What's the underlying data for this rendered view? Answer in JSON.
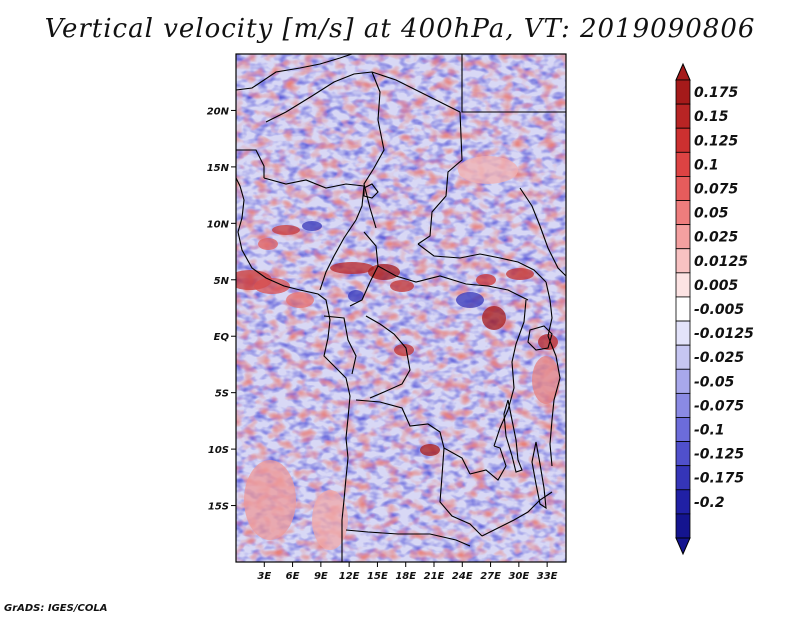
{
  "title": "Vertical velocity [m/s] at 400hPa, VT: 2019090806",
  "footer": "GrADS: IGES/COLA",
  "map": {
    "lon_range": [
      0,
      35
    ],
    "lat_range": [
      -20,
      25
    ],
    "lon_ticks": [
      "3E",
      "6E",
      "9E",
      "12E",
      "15E",
      "18E",
      "21E",
      "24E",
      "27E",
      "30E",
      "33E"
    ],
    "lat_ticks": [
      "20N",
      "15N",
      "10N",
      "5N",
      "EQ",
      "5S",
      "10S",
      "15S"
    ]
  },
  "colorbar": {
    "levels": [
      "0.175",
      "0.15",
      "0.125",
      "0.1",
      "0.075",
      "0.05",
      "0.025",
      "0.0125",
      "0.005",
      "-0.005",
      "-0.0125",
      "-0.025",
      "-0.05",
      "-0.075",
      "-0.1",
      "-0.125",
      "-0.175",
      "-0.2"
    ],
    "colors": [
      "#a51a1a",
      "#b82424",
      "#cc3030",
      "#dd4343",
      "#e65c5c",
      "#ee7d7d",
      "#f4a0a0",
      "#f8c2c2",
      "#fce3e3",
      "#ffffff",
      "#e3e3fa",
      "#c6c6f2",
      "#a8a8ec",
      "#8a8ae4",
      "#6c6cda",
      "#5050cc",
      "#3535b8",
      "#2020a5",
      "#14148f"
    ]
  },
  "colors": {
    "positive": "#e0645f",
    "negative": "#5a5ad8",
    "background": "#dcdcf6"
  }
}
